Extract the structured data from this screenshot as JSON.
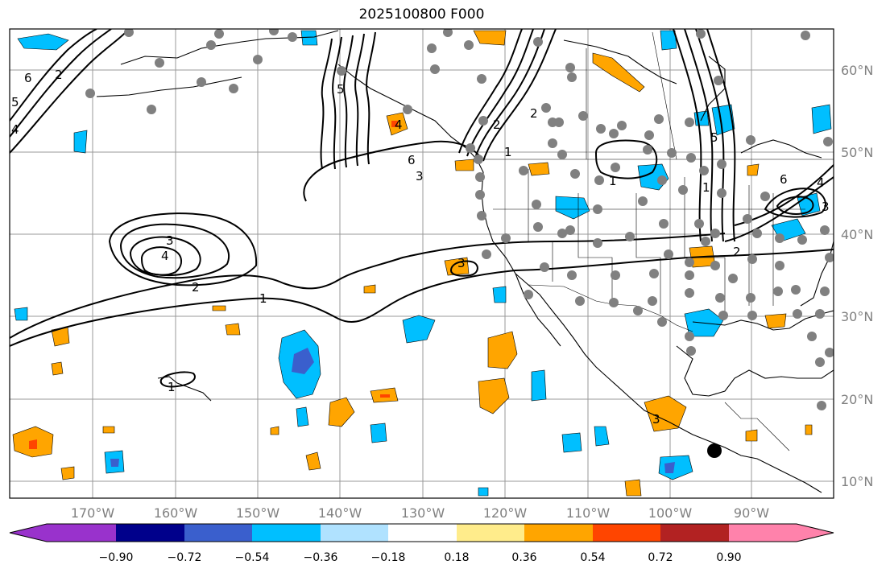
{
  "title": "2025100800 F000",
  "map": {
    "lon_labels": [
      "170°W",
      "160°W",
      "150°W",
      "140°W",
      "130°W",
      "120°W",
      "110°W",
      "100°W",
      "90°W"
    ],
    "lat_labels": [
      "60°N",
      "50°N",
      "40°N",
      "30°N",
      "20°N",
      "10°N"
    ],
    "contour_labels": [
      "6",
      "5",
      "4",
      "3",
      "2",
      "1",
      "4",
      "5",
      "2",
      "6",
      "3",
      "1",
      "3",
      "4",
      "2",
      "1",
      "3",
      "1",
      "6",
      "4",
      "3",
      "5",
      "2",
      "1",
      "2"
    ],
    "station_marker_color": "#808080",
    "highlight_marker_color": "#000000"
  },
  "colorbar": {
    "tick_labels": [
      "−0.90",
      "−0.72",
      "−0.54",
      "−0.36",
      "−0.18",
      "0.18",
      "0.36",
      "0.54",
      "0.72",
      "0.90"
    ],
    "colors": [
      "#9932cc",
      "#00008b",
      "#3a5fcd",
      "#00bfff",
      "#b0e2ff",
      "#ffffff",
      "#ffec8b",
      "#ffa500",
      "#ff4500",
      "#b22222",
      "#ff82ab"
    ]
  }
}
